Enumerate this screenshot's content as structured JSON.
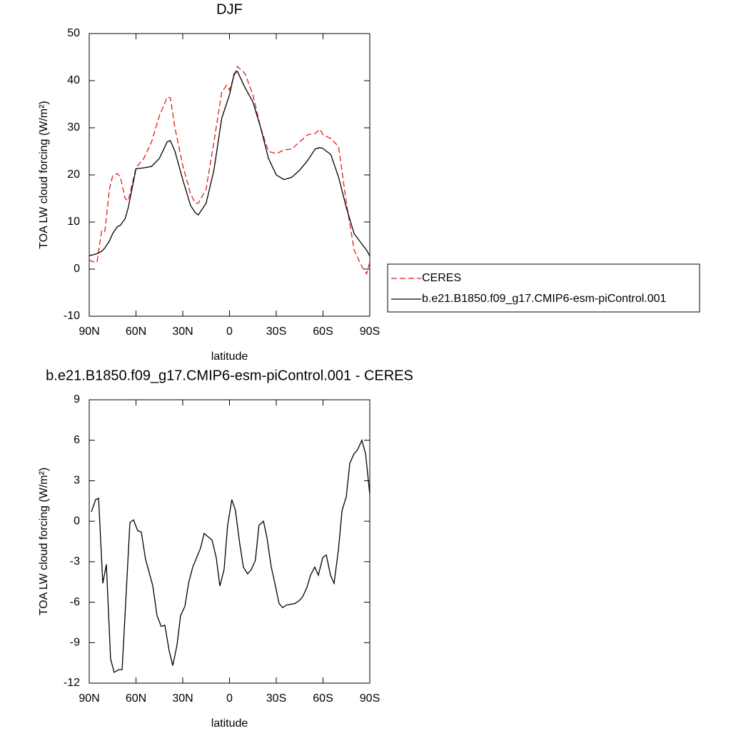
{
  "chart_data": [
    {
      "type": "line",
      "title": "DJF",
      "xlabel": "latitude",
      "ylabel": "TOA LW cloud forcing (W/m²)",
      "x": [
        90,
        88,
        85,
        82,
        80,
        77,
        75,
        72,
        70,
        67,
        65,
        60,
        55,
        50,
        45,
        40,
        38,
        35,
        30,
        25,
        22,
        20,
        15,
        10,
        5,
        2,
        0,
        -3,
        -5,
        -10,
        -15,
        -20,
        -25,
        -30,
        -35,
        -40,
        -45,
        -50,
        -55,
        -58,
        -60,
        -65,
        -70,
        -75,
        -80,
        -85,
        -88,
        -90
      ],
      "series": [
        {
          "name": "CERES",
          "color": "#e41a1c",
          "line_style": "dashed",
          "values": [
            2.0,
            1.6,
            1.5,
            8.2,
            8.0,
            17.0,
            19.8,
            20.3,
            19.5,
            15.0,
            14.5,
            21.5,
            23.5,
            27.0,
            32.5,
            36.5,
            36.4,
            30.0,
            22.0,
            16.0,
            14.0,
            14.0,
            17.0,
            27.0,
            37.5,
            39.0,
            38.0,
            41.0,
            43.0,
            41.5,
            37.0,
            30.0,
            25.0,
            24.5,
            25.3,
            25.5,
            27.0,
            28.5,
            28.8,
            29.7,
            28.5,
            27.7,
            26.0,
            14.0,
            4.0,
            0.5,
            -1.0,
            1.5
          ]
        },
        {
          "name": "b.e21.B1850.f09_g17.CMIP6-esm-piControl.001",
          "color": "#000000",
          "line_style": "solid",
          "values": [
            2.9,
            3.0,
            3.3,
            3.8,
            4.5,
            6.0,
            7.5,
            9.0,
            9.3,
            10.7,
            13.0,
            21.3,
            21.5,
            21.8,
            23.5,
            27.0,
            27.3,
            25.0,
            19.0,
            13.5,
            12.0,
            11.5,
            14.0,
            21.0,
            32.0,
            35.0,
            37.0,
            41.5,
            42.0,
            38.5,
            35.5,
            30.0,
            23.5,
            20.0,
            19.0,
            19.5,
            21.0,
            23.0,
            25.5,
            25.8,
            25.6,
            24.3,
            19.5,
            13.0,
            7.5,
            5.3,
            4.0,
            2.8
          ]
        }
      ],
      "xlim": [
        90,
        -90
      ],
      "xticks": [
        {
          "value": 90,
          "label": "90N"
        },
        {
          "value": 60,
          "label": "60N"
        },
        {
          "value": 30,
          "label": "30N"
        },
        0,
        {
          "value": -30,
          "label": "30S"
        },
        {
          "value": -60,
          "label": "60S"
        },
        {
          "value": -90,
          "label": "90S"
        }
      ],
      "ylim": [
        -10,
        50
      ],
      "yticks": [
        -10,
        0,
        10,
        20,
        30,
        40,
        50
      ],
      "legend": "right"
    },
    {
      "type": "line",
      "title": "b.e21.B1850.f09_g17.CMIP6-esm-piControl.001 - CERES",
      "xlabel": "latitude",
      "ylabel": "TOA LW cloud forcing (W/m²)",
      "x": [
        88.6,
        85.9,
        84.0,
        81.3,
        79.0,
        76.3,
        74.0,
        71.2,
        68.9,
        63.9,
        61.6,
        58.9,
        56.6,
        53.9,
        49.2,
        46.5,
        43.8,
        41.5,
        38.7,
        36.4,
        33.7,
        31.4,
        28.6,
        26.3,
        23.6,
        18.6,
        16.3,
        11.2,
        8.5,
        6.2,
        3.5,
        1.2,
        -1.5,
        -3.8,
        -6.6,
        -8.9,
        -11.6,
        -13.9,
        -16.6,
        -18.9,
        -21.8,
        -24.0,
        -26.8,
        -29.1,
        -31.8,
        -34.1,
        -36.8,
        -41.9,
        -44.6,
        -46.9,
        -49.7,
        -52.0,
        -54.7,
        -57.0,
        -59.8,
        -62.1,
        -64.8,
        -67.1,
        -69.9,
        -72.2,
        -74.9,
        -77.2,
        -79.9,
        -82.2,
        -84.9,
        -87.3,
        -90.0
      ],
      "series": [
        {
          "color": "#000000",
          "line_style": "solid",
          "values": [
            0.7,
            1.6,
            1.7,
            -4.6,
            -3.2,
            -10.2,
            -11.2,
            -11.0,
            -11.0,
            -0.1,
            0.1,
            -0.7,
            -0.8,
            -2.8,
            -4.8,
            -7.0,
            -7.8,
            -7.7,
            -9.6,
            -10.7,
            -9.2,
            -7.0,
            -6.3,
            -4.6,
            -3.4,
            -2.0,
            -0.9,
            -1.4,
            -2.7,
            -4.8,
            -3.6,
            -0.3,
            1.6,
            0.8,
            -1.7,
            -3.4,
            -3.9,
            -3.6,
            -2.9,
            -0.3,
            0.0,
            -1.2,
            -3.4,
            -4.6,
            -6.1,
            -6.4,
            -6.2,
            -6.1,
            -5.9,
            -5.6,
            -4.9,
            -4.0,
            -3.4,
            -4.0,
            -2.7,
            -2.5,
            -4.0,
            -4.6,
            -2.1,
            0.8,
            1.8,
            4.3,
            5.0,
            5.3,
            6.0,
            5.0,
            2.0
          ]
        }
      ],
      "xlim": [
        90,
        -90
      ],
      "xticks": [
        {
          "value": 90,
          "label": "90N"
        },
        {
          "value": 60,
          "label": "60N"
        },
        {
          "value": 30,
          "label": "30N"
        },
        0,
        {
          "value": -30,
          "label": "30S"
        },
        {
          "value": -60,
          "label": "60S"
        },
        {
          "value": -90,
          "label": "90S"
        }
      ],
      "ylim": [
        -12,
        9
      ],
      "yticks": [
        -12,
        -9,
        -6,
        -3,
        0,
        3,
        6,
        9
      ]
    }
  ]
}
